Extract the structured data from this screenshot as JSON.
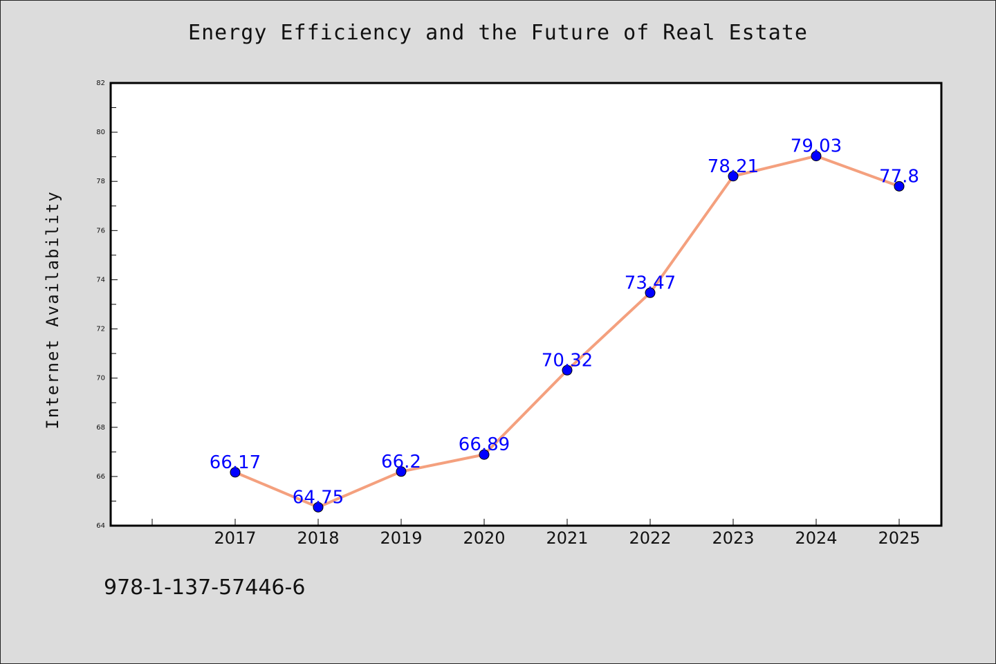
{
  "chart_data": {
    "type": "line",
    "title": "Energy Efficiency and the Future of Real Estate",
    "xlabel": "",
    "ylabel": "Internet Availability",
    "categories": [
      "2017",
      "2018",
      "2019",
      "2020",
      "2021",
      "2022",
      "2023",
      "2024",
      "2025"
    ],
    "series": [
      {
        "values": [
          66.17,
          64.75,
          66.2,
          66.89,
          70.32,
          73.47,
          78.21,
          79.03,
          77.8
        ],
        "labels": [
          "66.17",
          "64.75",
          "66.2",
          "66.89",
          "70.32",
          "73.47",
          "78.21",
          "79.03",
          "77.8"
        ]
      }
    ],
    "ylim": [
      64,
      82
    ],
    "yticks": [
      "64",
      "66",
      "68",
      "70",
      "72",
      "74",
      "76",
      "78",
      "80",
      "82"
    ],
    "grid": false,
    "legend": "none",
    "colors": {
      "line": "#f4a07e",
      "marker": "#0000ff",
      "label": "#0000ff",
      "plot_background": "#ffffff",
      "page_background": "#dcdcdc"
    }
  },
  "footnote": "978-1-137-57446-6"
}
